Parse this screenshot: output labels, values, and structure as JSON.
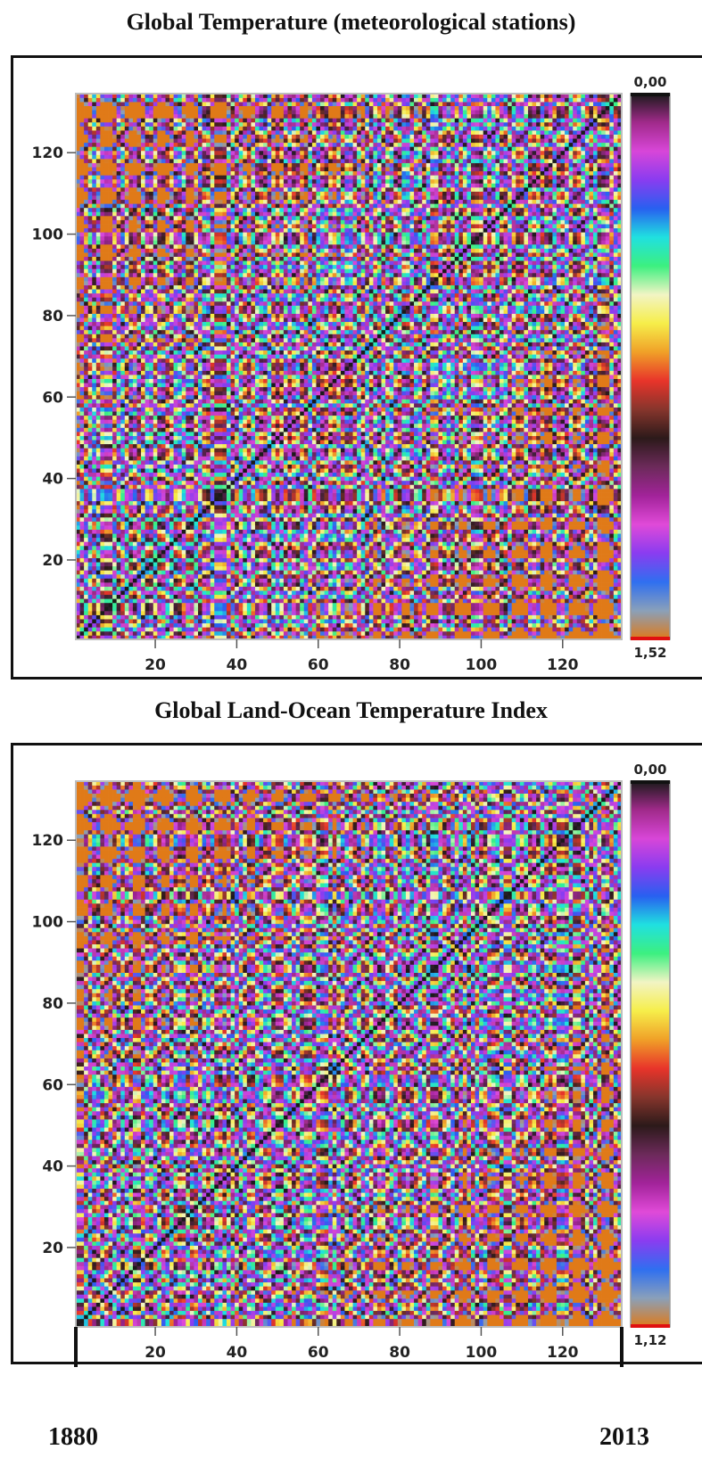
{
  "colors": {
    "colorbar": [
      "#e07a18",
      "#8aa0ba",
      "#2f6ff0",
      "#8a3cf0",
      "#e04ad8",
      "#a2239a",
      "#6c2a5a",
      "#2c1a1a",
      "#86352c",
      "#e8342a",
      "#f0a028",
      "#f6ee4a",
      "#f2f4c4",
      "#3cf080",
      "#20e0e0",
      "#2860f0",
      "#8a3cf0",
      "#d846d8",
      "#a02a8a",
      "#1a1a1a"
    ]
  },
  "chart_data": [
    {
      "type": "heatmap",
      "title": "Global Temperature (meteorological stations)",
      "x_ticks": [
        20,
        40,
        60,
        80,
        100,
        120
      ],
      "y_ticks": [
        20,
        40,
        60,
        80,
        100,
        120
      ],
      "xlim": [
        1,
        134
      ],
      "ylim": [
        1,
        134
      ],
      "grid": false,
      "colorbar": {
        "top_label": "0,00",
        "bottom_label": "1,52",
        "range": [
          0.0,
          1.52
        ]
      },
      "seed": 11
    },
    {
      "type": "heatmap",
      "title": "Global Land-Ocean Temperature Index",
      "x_ticks": [
        20,
        40,
        60,
        80,
        100,
        120
      ],
      "y_ticks": [
        20,
        40,
        60,
        80,
        100,
        120
      ],
      "xlim": [
        1,
        134
      ],
      "ylim": [
        1,
        134
      ],
      "grid": false,
      "colorbar": {
        "top_label": "0,00",
        "bottom_label": "1,12",
        "range": [
          0.0,
          1.12
        ]
      },
      "seed": 23
    }
  ],
  "footer": {
    "start_year": "1880",
    "end_year": "2013"
  }
}
